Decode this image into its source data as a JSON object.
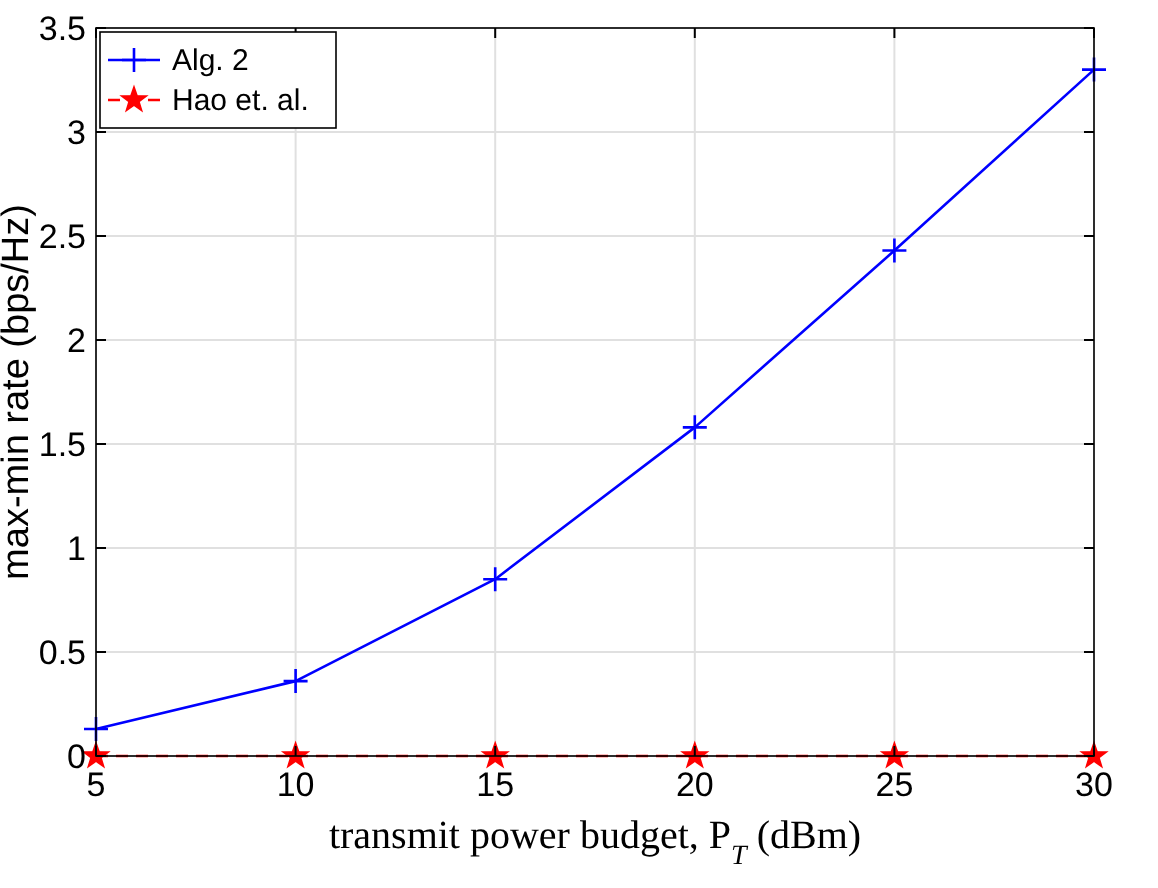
{
  "chart_data": {
    "type": "line",
    "xlabel": "transmit power budget, P$_{T}$ (dBm)",
    "ylabel": "max-min rate (bps/Hz)",
    "x": [
      5,
      10,
      15,
      20,
      25,
      30
    ],
    "xlim": [
      5,
      30
    ],
    "xticks": [
      5,
      10,
      15,
      20,
      25,
      30
    ],
    "ylim": [
      0,
      3.5
    ],
    "yticks": [
      0,
      0.5,
      1,
      1.5,
      2,
      2.5,
      3,
      3.5
    ],
    "grid": true,
    "legend": "top left",
    "series": [
      {
        "name": "Alg. 2",
        "color": "#0000ff",
        "values": [
          0.13,
          0.36,
          0.85,
          1.58,
          2.43,
          3.3
        ],
        "marker": "cross",
        "line_style": "solid"
      },
      {
        "name": "Hao et. al.",
        "color": "#ff0000",
        "values": [
          0,
          0,
          0,
          0,
          0,
          0
        ],
        "marker": "star",
        "line_style": "dashed"
      }
    ]
  }
}
